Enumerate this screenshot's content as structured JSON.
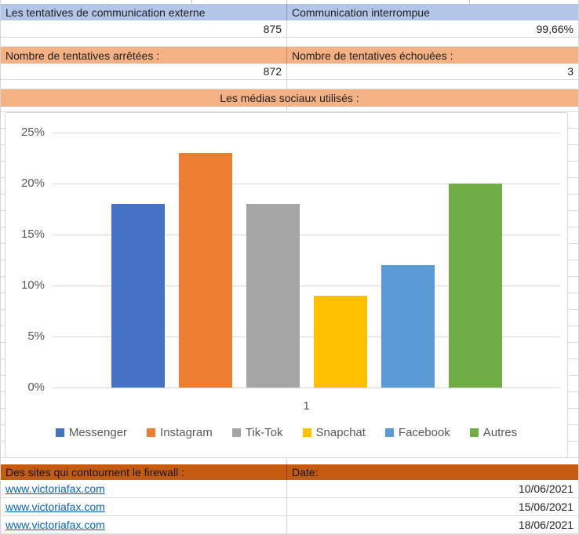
{
  "colors": {
    "header_blue_fill": "#B4C6E7",
    "header_orange_fill": "#F4B183",
    "header_dark_orange_fill": "#C55A11",
    "hyperlink": "#0563C1",
    "chart_text": "#595959",
    "gridline": "#D9D9D9"
  },
  "summary": {
    "external": {
      "label": "Les tentatives de communication externe",
      "value": "875"
    },
    "interrupted": {
      "label": "Communication interrompue",
      "value": "99,66%"
    },
    "stopped": {
      "label": "Nombre de tentatives arrêtées :",
      "value": "872"
    },
    "failed": {
      "label": "Nombre de tentatives échouées :",
      "value": "3"
    }
  },
  "social_header": "Les médias sociaux utilisés :",
  "chart_data": {
    "type": "bar",
    "title": "Les médias sociaux utilisés :",
    "categories": [
      "1"
    ],
    "series": [
      {
        "name": "Messenger",
        "values": [
          18
        ],
        "color": "#4472C4"
      },
      {
        "name": "Instagram",
        "values": [
          23
        ],
        "color": "#ED7D31"
      },
      {
        "name": "Tik-Tok",
        "values": [
          18
        ],
        "color": "#A5A5A5"
      },
      {
        "name": "Snapchat",
        "values": [
          9
        ],
        "color": "#FFC000"
      },
      {
        "name": "Facebook",
        "values": [
          12
        ],
        "color": "#5B9BD5"
      },
      {
        "name": "Autres",
        "values": [
          20
        ],
        "color": "#70AD47"
      }
    ],
    "xlabel": "",
    "ylabel": "",
    "ylim": [
      0,
      25
    ],
    "y_tick_step": 5,
    "y_ticks": [
      "0%",
      "5%",
      "10%",
      "15%",
      "20%",
      "25%"
    ],
    "unit": "%",
    "grid": true,
    "legend_position": "bottom"
  },
  "sites": {
    "header": "Des sites qui contournent le firewall :",
    "date_header": "Date:",
    "rows": [
      {
        "url": "www.victoriafax.com",
        "date": "10/06/2021"
      },
      {
        "url": "www.victoriafax.com",
        "date": "15/06/2021"
      },
      {
        "url": "www.victoriafax.com",
        "date": "18/06/2021"
      }
    ]
  }
}
